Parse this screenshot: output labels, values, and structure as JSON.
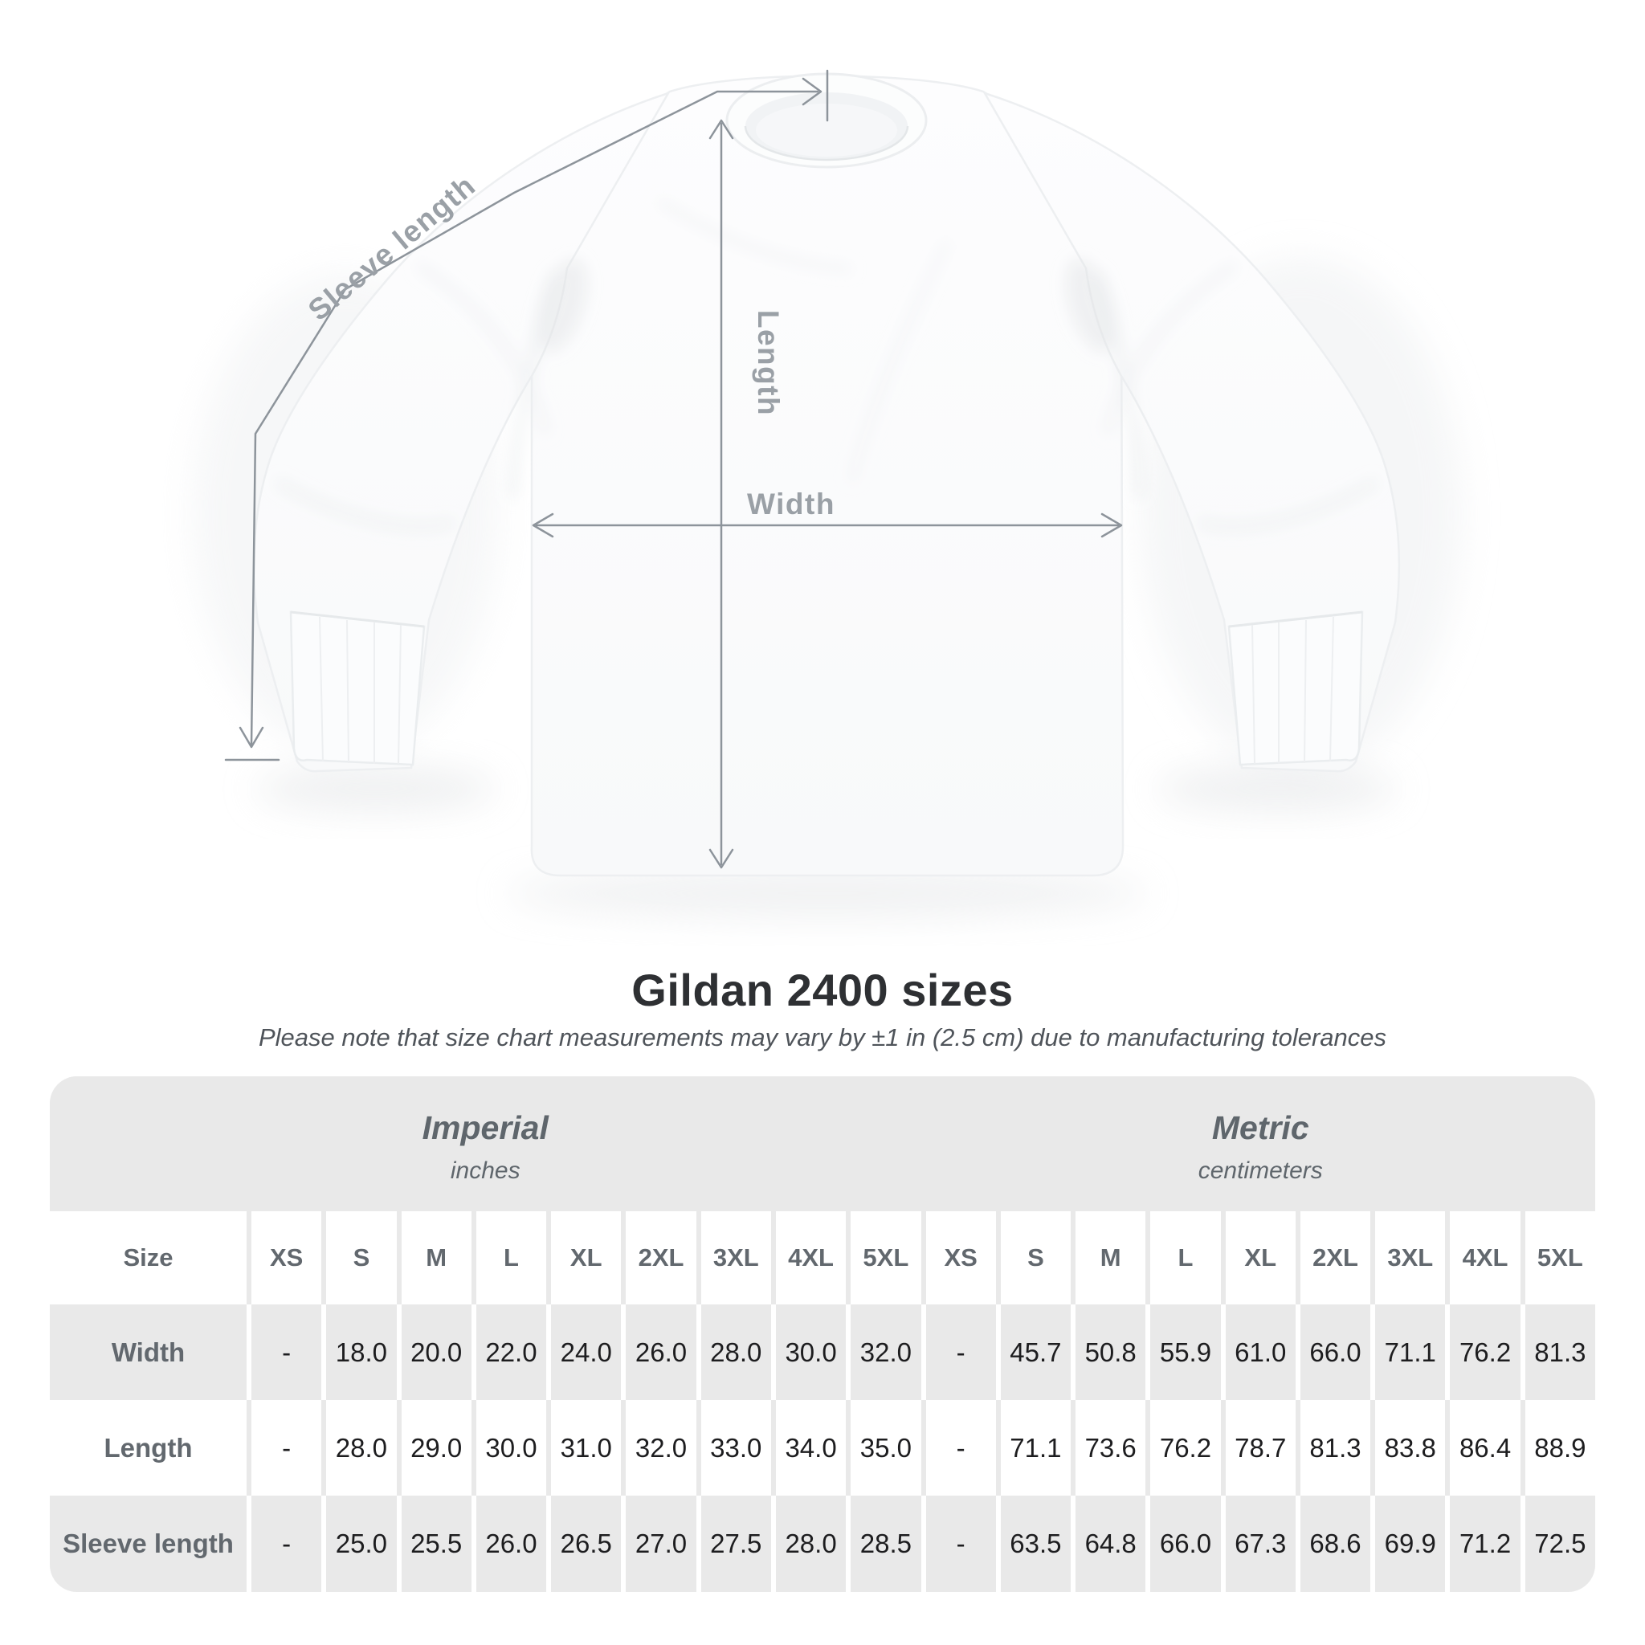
{
  "figure": {
    "sleeve_label": "Sleeve length",
    "length_label": "Length",
    "width_label": "Width"
  },
  "title": "Gildan 2400 sizes",
  "subtitle": "Please note that size chart measurements may vary by ±1 in (2.5 cm) due to manufacturing tolerances",
  "table": {
    "size_header": "Size",
    "groups": [
      {
        "name": "Imperial",
        "unit": "inches"
      },
      {
        "name": "Metric",
        "unit": "centimeters"
      }
    ],
    "sizes": [
      "XS",
      "S",
      "M",
      "L",
      "XL",
      "2XL",
      "3XL",
      "4XL",
      "5XL"
    ],
    "rows": [
      {
        "label": "Width",
        "imperial": [
          "-",
          "18.0",
          "20.0",
          "22.0",
          "24.0",
          "26.0",
          "28.0",
          "30.0",
          "32.0"
        ],
        "metric": [
          "-",
          "45.7",
          "50.8",
          "55.9",
          "61.0",
          "66.0",
          "71.1",
          "76.2",
          "81.3"
        ]
      },
      {
        "label": "Length",
        "imperial": [
          "-",
          "28.0",
          "29.0",
          "30.0",
          "31.0",
          "32.0",
          "33.0",
          "34.0",
          "35.0"
        ],
        "metric": [
          "-",
          "71.1",
          "73.6",
          "76.2",
          "78.7",
          "81.3",
          "83.8",
          "86.4",
          "88.9"
        ]
      },
      {
        "label": "Sleeve length",
        "imperial": [
          "-",
          "25.0",
          "25.5",
          "26.0",
          "26.5",
          "27.0",
          "27.5",
          "28.0",
          "28.5"
        ],
        "metric": [
          "-",
          "63.5",
          "64.8",
          "66.0",
          "67.3",
          "68.6",
          "69.9",
          "71.2",
          "72.5"
        ]
      }
    ]
  },
  "chart_data": {
    "type": "table",
    "title": "Gildan 2400 sizes",
    "columns": [
      "Size",
      "XS",
      "S",
      "M",
      "L",
      "XL",
      "2XL",
      "3XL",
      "4XL",
      "5XL"
    ],
    "units": {
      "imperial": "inches",
      "metric": "centimeters"
    },
    "rows_imperial": [
      [
        "Width",
        null,
        18.0,
        20.0,
        22.0,
        24.0,
        26.0,
        28.0,
        30.0,
        32.0
      ],
      [
        "Length",
        null,
        28.0,
        29.0,
        30.0,
        31.0,
        32.0,
        33.0,
        34.0,
        35.0
      ],
      [
        "Sleeve length",
        null,
        25.0,
        25.5,
        26.0,
        26.5,
        27.0,
        27.5,
        28.0,
        28.5
      ]
    ],
    "rows_metric": [
      [
        "Width",
        null,
        45.7,
        50.8,
        55.9,
        61.0,
        66.0,
        71.1,
        76.2,
        81.3
      ],
      [
        "Length",
        null,
        71.1,
        73.6,
        76.2,
        78.7,
        81.3,
        83.8,
        86.4,
        88.9
      ],
      [
        "Sleeve length",
        null,
        63.5,
        64.8,
        66.0,
        67.3,
        68.6,
        69.9,
        71.2,
        72.5
      ]
    ]
  },
  "colors": {
    "card_background": "#e9e9e9",
    "cell_white": "#ffffff",
    "annotation_line": "#8d949b",
    "figure_label": "#9aa0a6",
    "header_text": "#62686e",
    "value_text": "#1d1d1f",
    "title_text": "#2e3033",
    "subtitle_text": "#4f545a"
  }
}
